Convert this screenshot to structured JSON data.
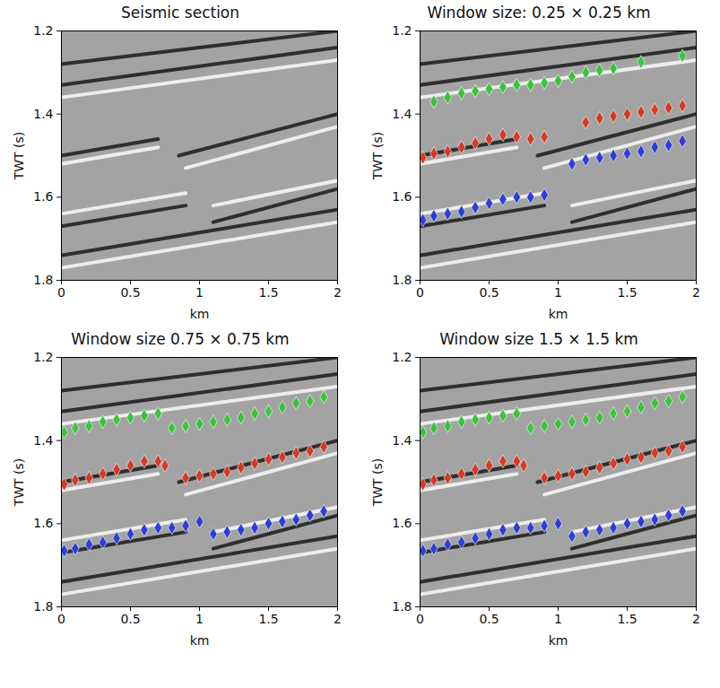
{
  "chart_data": [
    {
      "type": "scatter",
      "title": "Seismic section",
      "xlabel": "km",
      "ylabel": "TWT (s)",
      "xlim": [
        0,
        2
      ],
      "ylim": [
        1.2,
        1.8
      ],
      "xticks": [
        0,
        0.5,
        1,
        1.5,
        2
      ],
      "yticks": [
        1.2,
        1.4,
        1.6,
        1.8
      ],
      "reflectors": [
        {
          "type": "line",
          "color": "#111111",
          "x": [
            0,
            2
          ],
          "values": [
            1.28,
            1.2
          ]
        },
        {
          "type": "line",
          "color": "#111111",
          "x": [
            0,
            2
          ],
          "values": [
            1.33,
            1.24
          ]
        },
        {
          "type": "line",
          "color": "#ffffff",
          "x": [
            0,
            2
          ],
          "values": [
            1.36,
            1.27
          ]
        },
        {
          "type": "line",
          "color": "#111111",
          "x": [
            0,
            0.7
          ],
          "values": [
            1.5,
            1.46
          ]
        },
        {
          "type": "line",
          "color": "#111111",
          "x": [
            0.85,
            2
          ],
          "values": [
            1.5,
            1.4
          ]
        },
        {
          "type": "line",
          "color": "#ffffff",
          "x": [
            0,
            0.7
          ],
          "values": [
            1.52,
            1.48
          ]
        },
        {
          "type": "line",
          "color": "#ffffff",
          "x": [
            0.9,
            2
          ],
          "values": [
            1.53,
            1.43
          ]
        },
        {
          "type": "line",
          "color": "#ffffff",
          "x": [
            0,
            0.9
          ],
          "values": [
            1.64,
            1.59
          ]
        },
        {
          "type": "line",
          "color": "#ffffff",
          "x": [
            1.1,
            2
          ],
          "values": [
            1.62,
            1.56
          ]
        },
        {
          "type": "line",
          "color": "#111111",
          "x": [
            0,
            0.9
          ],
          "values": [
            1.67,
            1.62
          ]
        },
        {
          "type": "line",
          "color": "#111111",
          "x": [
            1.1,
            2
          ],
          "values": [
            1.66,
            1.58
          ]
        },
        {
          "type": "line",
          "color": "#111111",
          "x": [
            0,
            2
          ],
          "values": [
            1.74,
            1.63
          ]
        },
        {
          "type": "line",
          "color": "#ffffff",
          "x": [
            0,
            2
          ],
          "values": [
            1.77,
            1.66
          ]
        }
      ],
      "series": []
    },
    {
      "type": "scatter",
      "title": "Window size: 0.25 × 0.25 km",
      "xlabel": "km",
      "ylabel": "TWT (s)",
      "xlim": [
        0,
        2
      ],
      "ylim": [
        1.2,
        1.8
      ],
      "xticks": [
        0,
        0.5,
        1,
        1.5,
        2
      ],
      "yticks": [
        1.2,
        1.4,
        1.6,
        1.8
      ],
      "reflectors": [
        {
          "type": "line",
          "color": "#111111",
          "x": [
            0,
            2
          ],
          "values": [
            1.28,
            1.2
          ]
        },
        {
          "type": "line",
          "color": "#111111",
          "x": [
            0,
            2
          ],
          "values": [
            1.33,
            1.24
          ]
        },
        {
          "type": "line",
          "color": "#ffffff",
          "x": [
            0,
            2
          ],
          "values": [
            1.36,
            1.27
          ]
        },
        {
          "type": "line",
          "color": "#111111",
          "x": [
            0,
            0.7
          ],
          "values": [
            1.5,
            1.46
          ]
        },
        {
          "type": "line",
          "color": "#111111",
          "x": [
            0.85,
            2
          ],
          "values": [
            1.5,
            1.4
          ]
        },
        {
          "type": "line",
          "color": "#ffffff",
          "x": [
            0,
            0.7
          ],
          "values": [
            1.52,
            1.48
          ]
        },
        {
          "type": "line",
          "color": "#ffffff",
          "x": [
            0.9,
            2
          ],
          "values": [
            1.53,
            1.43
          ]
        },
        {
          "type": "line",
          "color": "#ffffff",
          "x": [
            0,
            0.9
          ],
          "values": [
            1.64,
            1.59
          ]
        },
        {
          "type": "line",
          "color": "#ffffff",
          "x": [
            1.1,
            2
          ],
          "values": [
            1.62,
            1.56
          ]
        },
        {
          "type": "line",
          "color": "#111111",
          "x": [
            0,
            0.9
          ],
          "values": [
            1.67,
            1.62
          ]
        },
        {
          "type": "line",
          "color": "#111111",
          "x": [
            1.1,
            2
          ],
          "values": [
            1.66,
            1.58
          ]
        },
        {
          "type": "line",
          "color": "#111111",
          "x": [
            0,
            2
          ],
          "values": [
            1.74,
            1.63
          ]
        },
        {
          "type": "line",
          "color": "#ffffff",
          "x": [
            0,
            2
          ],
          "values": [
            1.77,
            1.66
          ]
        }
      ],
      "series": [
        {
          "color": "#3cc23c",
          "marker": "diamond",
          "x": [
            0.1,
            0.2,
            0.3,
            0.4,
            0.5,
            0.6,
            0.7,
            0.8,
            0.9,
            1.0,
            1.1,
            1.2,
            1.3,
            1.4,
            1.6,
            1.9
          ],
          "values": [
            1.37,
            1.36,
            1.35,
            1.345,
            1.34,
            1.335,
            1.33,
            1.33,
            1.325,
            1.32,
            1.31,
            1.3,
            1.295,
            1.29,
            1.275,
            1.26
          ]
        },
        {
          "color": "#d43a24",
          "marker": "diamond",
          "x": [
            0.02,
            0.1,
            0.2,
            0.3,
            0.4,
            0.5,
            0.6,
            0.7,
            0.8,
            0.9,
            1.2,
            1.3,
            1.4,
            1.5,
            1.6,
            1.7,
            1.8,
            1.9
          ],
          "values": [
            1.505,
            1.495,
            1.49,
            1.48,
            1.47,
            1.46,
            1.45,
            1.455,
            1.46,
            1.455,
            1.42,
            1.41,
            1.405,
            1.4,
            1.395,
            1.39,
            1.385,
            1.38
          ]
        },
        {
          "color": "#2b3fd6",
          "marker": "diamond",
          "x": [
            0.02,
            0.1,
            0.2,
            0.3,
            0.4,
            0.5,
            0.6,
            0.7,
            0.8,
            0.9,
            1.1,
            1.2,
            1.3,
            1.4,
            1.5,
            1.6,
            1.7,
            1.8,
            1.9
          ],
          "values": [
            1.655,
            1.645,
            1.64,
            1.635,
            1.625,
            1.615,
            1.605,
            1.6,
            1.6,
            1.595,
            1.52,
            1.51,
            1.505,
            1.5,
            1.495,
            1.49,
            1.48,
            1.475,
            1.465
          ]
        }
      ]
    },
    {
      "type": "scatter",
      "title": "Window size 0.75 × 0.75 km",
      "xlabel": "km",
      "ylabel": "TWT (s)",
      "xlim": [
        0,
        2
      ],
      "ylim": [
        1.2,
        1.8
      ],
      "xticks": [
        0,
        0.5,
        1,
        1.5,
        2
      ],
      "yticks": [
        1.2,
        1.4,
        1.6,
        1.8
      ],
      "reflectors": [
        {
          "type": "line",
          "color": "#111111",
          "x": [
            0,
            2
          ],
          "values": [
            1.28,
            1.2
          ]
        },
        {
          "type": "line",
          "color": "#111111",
          "x": [
            0,
            2
          ],
          "values": [
            1.33,
            1.24
          ]
        },
        {
          "type": "line",
          "color": "#ffffff",
          "x": [
            0,
            2
          ],
          "values": [
            1.36,
            1.27
          ]
        },
        {
          "type": "line",
          "color": "#111111",
          "x": [
            0,
            0.7
          ],
          "values": [
            1.5,
            1.46
          ]
        },
        {
          "type": "line",
          "color": "#111111",
          "x": [
            0.85,
            2
          ],
          "values": [
            1.5,
            1.4
          ]
        },
        {
          "type": "line",
          "color": "#ffffff",
          "x": [
            0,
            0.7
          ],
          "values": [
            1.52,
            1.48
          ]
        },
        {
          "type": "line",
          "color": "#ffffff",
          "x": [
            0.9,
            2
          ],
          "values": [
            1.53,
            1.43
          ]
        },
        {
          "type": "line",
          "color": "#ffffff",
          "x": [
            0,
            0.9
          ],
          "values": [
            1.64,
            1.59
          ]
        },
        {
          "type": "line",
          "color": "#ffffff",
          "x": [
            1.1,
            2
          ],
          "values": [
            1.62,
            1.56
          ]
        },
        {
          "type": "line",
          "color": "#111111",
          "x": [
            0,
            0.9
          ],
          "values": [
            1.67,
            1.62
          ]
        },
        {
          "type": "line",
          "color": "#111111",
          "x": [
            1.1,
            2
          ],
          "values": [
            1.66,
            1.58
          ]
        },
        {
          "type": "line",
          "color": "#111111",
          "x": [
            0,
            2
          ],
          "values": [
            1.74,
            1.63
          ]
        },
        {
          "type": "line",
          "color": "#ffffff",
          "x": [
            0,
            2
          ],
          "values": [
            1.77,
            1.66
          ]
        }
      ],
      "series": [
        {
          "color": "#3cc23c",
          "marker": "diamond",
          "x": [
            0.02,
            0.1,
            0.2,
            0.3,
            0.4,
            0.5,
            0.6,
            0.7,
            0.8,
            0.9,
            1.0,
            1.1,
            1.2,
            1.3,
            1.4,
            1.5,
            1.6,
            1.7,
            1.8,
            1.9
          ],
          "values": [
            1.38,
            1.37,
            1.365,
            1.355,
            1.35,
            1.345,
            1.34,
            1.335,
            1.37,
            1.365,
            1.36,
            1.355,
            1.35,
            1.345,
            1.335,
            1.33,
            1.32,
            1.31,
            1.305,
            1.295
          ]
        },
        {
          "color": "#d43a24",
          "marker": "diamond",
          "x": [
            0.02,
            0.1,
            0.2,
            0.3,
            0.4,
            0.5,
            0.6,
            0.7,
            0.75,
            0.9,
            1.0,
            1.1,
            1.2,
            1.3,
            1.4,
            1.5,
            1.6,
            1.7,
            1.8,
            1.9
          ],
          "values": [
            1.505,
            1.495,
            1.49,
            1.48,
            1.47,
            1.46,
            1.45,
            1.45,
            1.46,
            1.49,
            1.485,
            1.48,
            1.475,
            1.465,
            1.455,
            1.445,
            1.44,
            1.43,
            1.425,
            1.415
          ]
        },
        {
          "color": "#2b3fd6",
          "marker": "diamond",
          "x": [
            0.02,
            0.1,
            0.2,
            0.3,
            0.4,
            0.5,
            0.6,
            0.7,
            0.8,
            0.9,
            1.0,
            1.1,
            1.2,
            1.3,
            1.4,
            1.5,
            1.6,
            1.7,
            1.8,
            1.9
          ],
          "values": [
            1.665,
            1.66,
            1.65,
            1.645,
            1.635,
            1.625,
            1.615,
            1.61,
            1.61,
            1.605,
            1.595,
            1.625,
            1.62,
            1.615,
            1.61,
            1.6,
            1.595,
            1.59,
            1.58,
            1.57
          ]
        }
      ]
    },
    {
      "type": "scatter",
      "title": "Window size 1.5 × 1.5 km",
      "xlabel": "km",
      "ylabel": "TWT (s)",
      "xlim": [
        0,
        2
      ],
      "ylim": [
        1.2,
        1.8
      ],
      "xticks": [
        0,
        0.5,
        1,
        1.5,
        2
      ],
      "yticks": [
        1.2,
        1.4,
        1.6,
        1.8
      ],
      "reflectors": [
        {
          "type": "line",
          "color": "#111111",
          "x": [
            0,
            2
          ],
          "values": [
            1.28,
            1.2
          ]
        },
        {
          "type": "line",
          "color": "#111111",
          "x": [
            0,
            2
          ],
          "values": [
            1.33,
            1.24
          ]
        },
        {
          "type": "line",
          "color": "#ffffff",
          "x": [
            0,
            2
          ],
          "values": [
            1.36,
            1.27
          ]
        },
        {
          "type": "line",
          "color": "#111111",
          "x": [
            0,
            0.7
          ],
          "values": [
            1.5,
            1.46
          ]
        },
        {
          "type": "line",
          "color": "#111111",
          "x": [
            0.85,
            2
          ],
          "values": [
            1.5,
            1.4
          ]
        },
        {
          "type": "line",
          "color": "#ffffff",
          "x": [
            0,
            0.7
          ],
          "values": [
            1.52,
            1.48
          ]
        },
        {
          "type": "line",
          "color": "#ffffff",
          "x": [
            0.9,
            2
          ],
          "values": [
            1.53,
            1.43
          ]
        },
        {
          "type": "line",
          "color": "#ffffff",
          "x": [
            0,
            0.9
          ],
          "values": [
            1.64,
            1.59
          ]
        },
        {
          "type": "line",
          "color": "#ffffff",
          "x": [
            1.1,
            2
          ],
          "values": [
            1.62,
            1.56
          ]
        },
        {
          "type": "line",
          "color": "#111111",
          "x": [
            0,
            0.9
          ],
          "values": [
            1.67,
            1.62
          ]
        },
        {
          "type": "line",
          "color": "#111111",
          "x": [
            1.1,
            2
          ],
          "values": [
            1.66,
            1.58
          ]
        },
        {
          "type": "line",
          "color": "#111111",
          "x": [
            0,
            2
          ],
          "values": [
            1.74,
            1.63
          ]
        },
        {
          "type": "line",
          "color": "#ffffff",
          "x": [
            0,
            2
          ],
          "values": [
            1.77,
            1.66
          ]
        }
      ],
      "series": [
        {
          "color": "#3cc23c",
          "marker": "diamond",
          "x": [
            0.02,
            0.1,
            0.2,
            0.3,
            0.4,
            0.5,
            0.6,
            0.7,
            0.8,
            0.9,
            1.0,
            1.1,
            1.2,
            1.3,
            1.4,
            1.5,
            1.6,
            1.7,
            1.8,
            1.9
          ],
          "values": [
            1.38,
            1.37,
            1.365,
            1.355,
            1.35,
            1.345,
            1.34,
            1.335,
            1.37,
            1.365,
            1.36,
            1.355,
            1.35,
            1.345,
            1.335,
            1.33,
            1.32,
            1.31,
            1.305,
            1.295
          ]
        },
        {
          "color": "#d43a24",
          "marker": "diamond",
          "x": [
            0.02,
            0.1,
            0.2,
            0.3,
            0.4,
            0.5,
            0.6,
            0.7,
            0.75,
            0.9,
            1.0,
            1.1,
            1.2,
            1.3,
            1.4,
            1.5,
            1.6,
            1.7,
            1.8,
            1.9
          ],
          "values": [
            1.505,
            1.495,
            1.49,
            1.48,
            1.47,
            1.46,
            1.45,
            1.45,
            1.46,
            1.49,
            1.485,
            1.48,
            1.475,
            1.465,
            1.455,
            1.445,
            1.44,
            1.43,
            1.425,
            1.415
          ]
        },
        {
          "color": "#2b3fd6",
          "marker": "diamond",
          "x": [
            0.02,
            0.1,
            0.2,
            0.3,
            0.4,
            0.5,
            0.6,
            0.7,
            0.8,
            0.9,
            1.0,
            1.1,
            1.2,
            1.3,
            1.4,
            1.5,
            1.6,
            1.7,
            1.8,
            1.9
          ],
          "values": [
            1.665,
            1.66,
            1.65,
            1.645,
            1.635,
            1.625,
            1.615,
            1.61,
            1.61,
            1.605,
            1.6,
            1.63,
            1.62,
            1.615,
            1.61,
            1.6,
            1.595,
            1.59,
            1.58,
            1.57
          ]
        }
      ]
    }
  ]
}
